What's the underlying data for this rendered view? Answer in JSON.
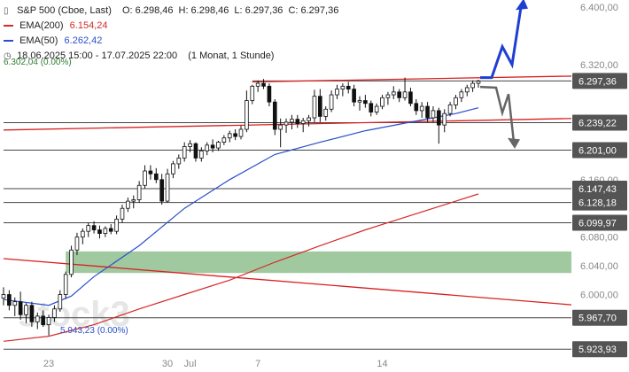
{
  "header": {
    "title": "S&P 500 (Cboe, Last)",
    "ohlc": [
      {
        "k": "O:",
        "v": "6.298,46"
      },
      {
        "k": "H:",
        "v": "6.298,46"
      },
      {
        "k": "L:",
        "v": "6.297,36"
      },
      {
        "k": "C:",
        "v": "6.297,36"
      }
    ],
    "ema200_label": "EMA(200)",
    "ema200_value": "6.154,24",
    "ema50_label": "EMA(50)",
    "ema50_value": "6.262,42",
    "range": "18.06.2025 15:00 - 17.07.2025 22:00",
    "period": "(1 Monat, 1 Stunde)",
    "top_note": "6.302,04 (0.00%)",
    "low_note": "5.943,23 (0.00%)"
  },
  "colors": {
    "ema200": "#d42a2a",
    "ema50": "#2a4ecb",
    "trend": "#d82020",
    "zone": "#8fbf8f",
    "arrow_up": "#1f3fd0",
    "arrow_down": "#666666",
    "tag": "#545454",
    "candle": "#111111"
  },
  "watermark": "stock3",
  "chart_data": {
    "type": "candlestick",
    "title": "S&P 500 (Cboe, Last)",
    "y_range": [
      5923,
      6410
    ],
    "y_ticks": [
      {
        "v": 6400,
        "label": "6.400,00"
      },
      {
        "v": 6320,
        "label": "6.320,00"
      },
      {
        "v": 6160,
        "label": "6.160,00"
      },
      {
        "v": 6080,
        "label": "6.080,00"
      },
      {
        "v": 6040,
        "label": "6.040,00"
      },
      {
        "v": 6000,
        "label": "6.000,00"
      }
    ],
    "x_ticks": [
      {
        "i": 8,
        "label": "23"
      },
      {
        "i": 29,
        "label": "30"
      },
      {
        "i": 33,
        "label": "Jul"
      },
      {
        "i": 45,
        "label": "7"
      },
      {
        "i": 67,
        "label": "14"
      }
    ],
    "last_price": {
      "value": 6297.36,
      "label": "6.297,36"
    },
    "levels": [
      {
        "value": 6297.36,
        "label": "6.297,36",
        "from_i": 44,
        "tag": true
      },
      {
        "value": 6239.22,
        "label": "6.239,22",
        "from_i": 0,
        "tag": true
      },
      {
        "value": 6201.0,
        "label": "6.201,00",
        "from_i": 0,
        "tag": true
      },
      {
        "value": 6147.43,
        "label": "6.147,43",
        "from_i": 0,
        "tag": true
      },
      {
        "value": 6128.18,
        "label": "6.128,18",
        "from_i": 0,
        "tag": true
      },
      {
        "value": 6099.97,
        "label": "6.099,97",
        "from_i": 0,
        "tag": true
      },
      {
        "value": 5967.7,
        "label": "5.967,70",
        "from_i": 0,
        "tag": true
      },
      {
        "value": 5923.93,
        "label": "5.923,93",
        "from_i": 0,
        "tag": true
      }
    ],
    "support_zone": {
      "from": 6030,
      "to": 6060,
      "from_i": 11
    },
    "trendlines": [
      {
        "i1": 44,
        "v1": 6296,
        "i2": 100,
        "v2": 6304
      },
      {
        "i1": 0,
        "v1": 6229,
        "i2": 100,
        "v2": 6245
      },
      {
        "i1": 0,
        "v1": 6050,
        "i2": 100,
        "v2": 5986
      }
    ],
    "ema200": [
      [
        0,
        5935
      ],
      [
        8,
        5942
      ],
      [
        16,
        5958
      ],
      [
        24,
        5980
      ],
      [
        32,
        6000
      ],
      [
        40,
        6020
      ],
      [
        48,
        6045
      ],
      [
        56,
        6068
      ],
      [
        64,
        6090
      ],
      [
        72,
        6110
      ],
      [
        80,
        6130
      ],
      [
        84,
        6140
      ]
    ],
    "ema50": [
      [
        0,
        5993
      ],
      [
        8,
        5985
      ],
      [
        12,
        5998
      ],
      [
        16,
        6025
      ],
      [
        24,
        6068
      ],
      [
        32,
        6120
      ],
      [
        40,
        6160
      ],
      [
        48,
        6195
      ],
      [
        56,
        6212
      ],
      [
        64,
        6228
      ],
      [
        72,
        6240
      ],
      [
        80,
        6252
      ],
      [
        84,
        6260
      ]
    ],
    "candles": [
      [
        5995,
        6010,
        5985,
        6000
      ],
      [
        6000,
        6006,
        5978,
        5985
      ],
      [
        5985,
        5996,
        5970,
        5990
      ],
      [
        5990,
        6004,
        5965,
        5972
      ],
      [
        5972,
        5988,
        5960,
        5985
      ],
      [
        5985,
        5990,
        5955,
        5962
      ],
      [
        5962,
        5975,
        5952,
        5970
      ],
      [
        5970,
        5978,
        5955,
        5958
      ],
      [
        5958,
        5972,
        5943,
        5968
      ],
      [
        5968,
        5985,
        5962,
        5980
      ],
      [
        5980,
        6006,
        5976,
        6000
      ],
      [
        6000,
        6032,
        5994,
        6028
      ],
      [
        6028,
        6068,
        6024,
        6062
      ],
      [
        6062,
        6086,
        6055,
        6080
      ],
      [
        6080,
        6092,
        6070,
        6088
      ],
      [
        6088,
        6100,
        6080,
        6096
      ],
      [
        6096,
        6102,
        6085,
        6090
      ],
      [
        6090,
        6096,
        6078,
        6085
      ],
      [
        6085,
        6095,
        6080,
        6092
      ],
      [
        6092,
        6098,
        6084,
        6088
      ],
      [
        6088,
        6110,
        6084,
        6105
      ],
      [
        6105,
        6125,
        6100,
        6120
      ],
      [
        6120,
        6135,
        6115,
        6130
      ],
      [
        6130,
        6138,
        6120,
        6132
      ],
      [
        6132,
        6158,
        6128,
        6152
      ],
      [
        6152,
        6180,
        6148,
        6172
      ],
      [
        6172,
        6180,
        6160,
        6168
      ],
      [
        6168,
        6176,
        6155,
        6160
      ],
      [
        6160,
        6168,
        6125,
        6130
      ],
      [
        6130,
        6175,
        6128,
        6168
      ],
      [
        6168,
        6186,
        6162,
        6182
      ],
      [
        6182,
        6195,
        6175,
        6190
      ],
      [
        6190,
        6212,
        6185,
        6206
      ],
      [
        6206,
        6215,
        6198,
        6210
      ],
      [
        6210,
        6212,
        6185,
        6190
      ],
      [
        6190,
        6205,
        6185,
        6200
      ],
      [
        6200,
        6212,
        6194,
        6208
      ],
      [
        6208,
        6216,
        6198,
        6204
      ],
      [
        6204,
        6214,
        6200,
        6212
      ],
      [
        6212,
        6222,
        6208,
        6218
      ],
      [
        6218,
        6228,
        6212,
        6224
      ],
      [
        6224,
        6230,
        6215,
        6220
      ],
      [
        6220,
        6235,
        6216,
        6230
      ],
      [
        6230,
        6284,
        6226,
        6270
      ],
      [
        6270,
        6292,
        6265,
        6290
      ],
      [
        6290,
        6298,
        6282,
        6294
      ],
      [
        6294,
        6300,
        6286,
        6290
      ],
      [
        6290,
        6294,
        6262,
        6268
      ],
      [
        6268,
        6272,
        6222,
        6230
      ],
      [
        6230,
        6245,
        6205,
        6236
      ],
      [
        6236,
        6245,
        6225,
        6240
      ],
      [
        6240,
        6250,
        6230,
        6244
      ],
      [
        6244,
        6250,
        6232,
        6238
      ],
      [
        6238,
        6246,
        6226,
        6242
      ],
      [
        6242,
        6250,
        6234,
        6246
      ],
      [
        6246,
        6285,
        6240,
        6276
      ],
      [
        6276,
        6286,
        6240,
        6248
      ],
      [
        6248,
        6262,
        6242,
        6258
      ],
      [
        6258,
        6284,
        6254,
        6278
      ],
      [
        6278,
        6292,
        6272,
        6286
      ],
      [
        6286,
        6294,
        6276,
        6290
      ],
      [
        6290,
        6296,
        6280,
        6286
      ],
      [
        6286,
        6292,
        6262,
        6268
      ],
      [
        6268,
        6276,
        6256,
        6270
      ],
      [
        6270,
        6278,
        6260,
        6266
      ],
      [
        6266,
        6270,
        6248,
        6254
      ],
      [
        6254,
        6266,
        6250,
        6262
      ],
      [
        6262,
        6278,
        6258,
        6274
      ],
      [
        6274,
        6282,
        6264,
        6278
      ],
      [
        6278,
        6290,
        6272,
        6282
      ],
      [
        6282,
        6286,
        6268,
        6274
      ],
      [
        6274,
        6302,
        6270,
        6282
      ],
      [
        6282,
        6288,
        6262,
        6266
      ],
      [
        6266,
        6272,
        6250,
        6256
      ],
      [
        6256,
        6268,
        6246,
        6262
      ],
      [
        6262,
        6268,
        6240,
        6246
      ],
      [
        6246,
        6262,
        6240,
        6256
      ],
      [
        6256,
        6260,
        6210,
        6236
      ],
      [
        6236,
        6258,
        6226,
        6252
      ],
      [
        6252,
        6268,
        6248,
        6264
      ],
      [
        6264,
        6278,
        6258,
        6274
      ],
      [
        6274,
        6286,
        6268,
        6282
      ],
      [
        6282,
        6292,
        6276,
        6288
      ],
      [
        6288,
        6298,
        6282,
        6294
      ],
      [
        6294,
        6299,
        6288,
        6297
      ]
    ]
  }
}
